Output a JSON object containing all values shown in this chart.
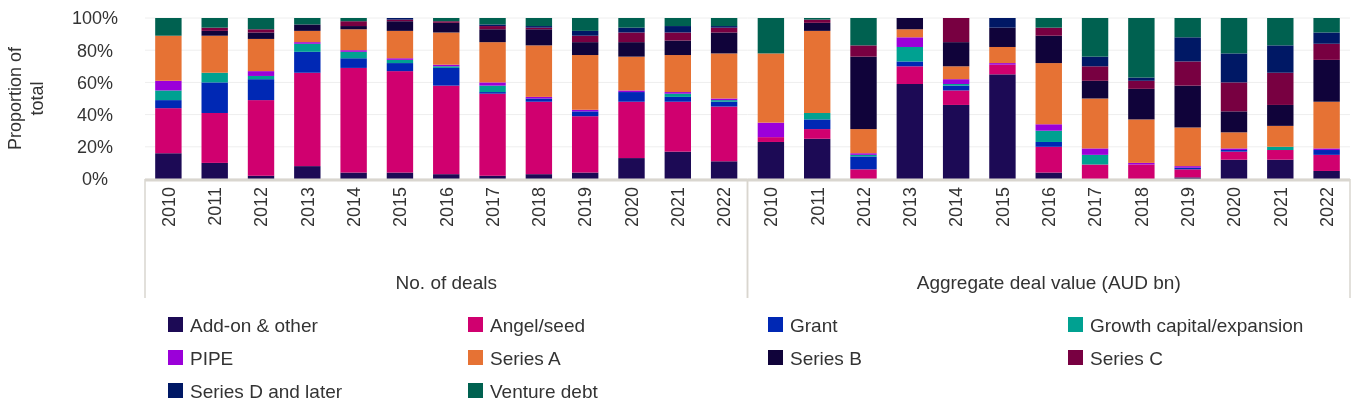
{
  "chart_data": [
    {
      "type": "bar",
      "stacked": true,
      "xlabel": "No. of deals",
      "ylabel": "Proportion of total",
      "ylim": [
        0,
        100
      ],
      "yticks": [
        {
          "value": 0,
          "label": "0%"
        },
        {
          "value": 20,
          "label": "20%"
        },
        {
          "value": 40,
          "label": "40%"
        },
        {
          "value": 60,
          "label": "60%"
        },
        {
          "value": 80,
          "label": "80%"
        },
        {
          "value": 100,
          "label": "100%"
        }
      ],
      "grid": "y",
      "legend": "bottom",
      "categories": [
        "2010",
        "2011",
        "2012",
        "2013",
        "2014",
        "2015",
        "2016",
        "2017",
        "2018",
        "2019",
        "2020",
        "2021",
        "2022"
      ],
      "series": [
        {
          "name": "Add-on & other",
          "color": "#1c0a55",
          "values": [
            16,
            10,
            2,
            8,
            4,
            4,
            3,
            2,
            3,
            4,
            13,
            17,
            11
          ]
        },
        {
          "name": "Angel/seed",
          "color": "#d0006f",
          "values": [
            28,
            31,
            47,
            58,
            65,
            63,
            55,
            51,
            45,
            35,
            35,
            31,
            34
          ]
        },
        {
          "name": "Grant",
          "color": "#0028b4",
          "values": [
            5,
            19,
            13,
            13,
            6,
            5,
            11,
            1,
            2,
            3,
            6,
            3,
            3
          ]
        },
        {
          "name": "Growth capital/expansion",
          "color": "#00a191",
          "values": [
            6,
            6,
            2,
            5,
            4,
            2,
            1,
            4,
            0,
            0,
            0,
            2,
            1
          ]
        },
        {
          "name": "PIPE",
          "color": "#9b00d9",
          "values": [
            6,
            0,
            3,
            1,
            1,
            1,
            1,
            2,
            1,
            1,
            1,
            1,
            1
          ]
        },
        {
          "name": "Series A",
          "color": "#e67234",
          "values": [
            28,
            23,
            20,
            7,
            13,
            17,
            20,
            25,
            32,
            34,
            21,
            23,
            28
          ]
        },
        {
          "name": "Series B",
          "color": "#10033a",
          "values": [
            0,
            3,
            4,
            4,
            2,
            6,
            6,
            8,
            10,
            8,
            9,
            9,
            13
          ]
        },
        {
          "name": "Series C",
          "color": "#780041",
          "values": [
            0,
            2,
            2,
            0,
            3,
            1,
            1,
            2,
            1,
            4,
            6,
            5,
            3
          ]
        },
        {
          "name": "Series D and later",
          "color": "#001865",
          "values": [
            0,
            0,
            0,
            0,
            0,
            1,
            0,
            1,
            1,
            3,
            3,
            4,
            1
          ]
        },
        {
          "name": "Venture debt",
          "color": "#006150",
          "values": [
            11,
            6,
            7,
            4,
            2,
            0,
            2,
            4,
            5,
            8,
            6,
            5,
            5
          ]
        }
      ]
    },
    {
      "type": "bar",
      "stacked": true,
      "xlabel": "Aggregate deal value (AUD bn)",
      "ylim": [
        0,
        100
      ],
      "tick_labels": "x",
      "grid": "y",
      "legend": false,
      "yticks": [
        {
          "value": 0,
          "label": null
        },
        {
          "value": 20,
          "label": null
        },
        {
          "value": 40,
          "label": null
        },
        {
          "value": 60,
          "label": null
        },
        {
          "value": 80,
          "label": null
        },
        {
          "value": 100,
          "label": null
        }
      ],
      "categories": [
        "2010",
        "2011",
        "2012",
        "2013",
        "2014",
        "2015",
        "2016",
        "2017",
        "2018",
        "2019",
        "2020",
        "2021",
        "2022"
      ],
      "series": [
        {
          "color": "#1c0a55",
          "values": [
            23,
            25,
            0,
            59,
            46,
            65,
            4,
            0,
            0,
            1,
            12,
            12,
            5
          ]
        },
        {
          "color": "#d0006f",
          "values": [
            3,
            6,
            6,
            11,
            9,
            6,
            16,
            9,
            9,
            5,
            5,
            6,
            10
          ]
        },
        {
          "color": "#0028b4",
          "values": [
            0,
            6,
            8,
            3,
            3,
            0,
            3,
            0,
            0,
            1,
            1,
            0,
            3
          ]
        },
        {
          "color": "#00a191",
          "values": [
            0,
            4,
            1,
            9,
            1,
            0,
            7,
            6,
            0,
            0,
            0,
            2,
            0
          ]
        },
        {
          "color": "#9b00d9",
          "values": [
            9,
            0,
            1,
            6,
            3,
            1,
            4,
            4,
            1,
            1,
            1,
            0,
            1
          ]
        },
        {
          "color": "#e67234",
          "values": [
            43,
            51,
            15,
            5,
            8,
            10,
            38,
            31,
            27,
            24,
            10,
            13,
            29
          ]
        },
        {
          "color": "#10033a",
          "values": [
            0,
            5,
            45,
            7,
            15,
            12,
            17,
            11,
            19,
            26,
            13,
            13,
            26
          ]
        },
        {
          "color": "#780041",
          "values": [
            0,
            2,
            7,
            0,
            15,
            0,
            5,
            9,
            5,
            15,
            18,
            20,
            10
          ]
        },
        {
          "color": "#001865",
          "values": [
            0,
            0,
            0,
            0,
            0,
            6,
            0,
            6,
            2,
            15,
            18,
            17,
            7
          ]
        },
        {
          "color": "#006150",
          "values": [
            22,
            1,
            17,
            0,
            0,
            0,
            6,
            24,
            37,
            12,
            22,
            17,
            9
          ]
        }
      ]
    }
  ]
}
